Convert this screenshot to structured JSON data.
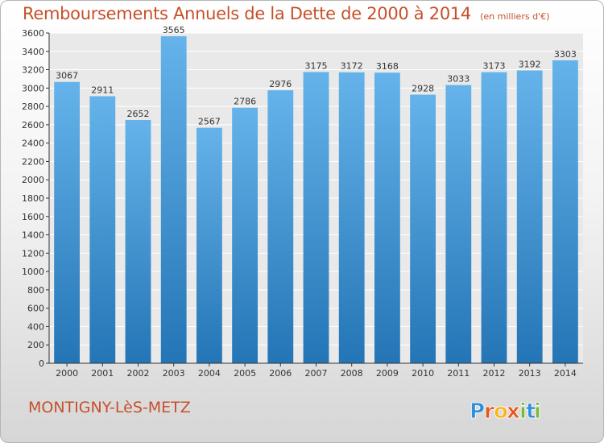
{
  "title": "Remboursements Annuels de la Dette de 2000 à 2014",
  "unit": "(en milliers d'€)",
  "city": "MONTIGNY-LèS-METZ",
  "brand": {
    "name": "Proxiti",
    "letters": [
      "P",
      "r",
      "o",
      "x",
      "i",
      "t",
      "i"
    ],
    "letter_colors": [
      "#2f8fd8",
      "#e8541c",
      "#f7b51c",
      "#e8541c",
      "#79b83a",
      "#2f8fd8",
      "#79b83a"
    ]
  },
  "colors": {
    "title": "#c6502a",
    "bar_top": "#65b3ea",
    "bar_bottom": "#2475b6",
    "plot_bg": "#e9e9e9",
    "grid": "#ffffff",
    "axis": "#333333"
  },
  "chart_data": {
    "type": "bar",
    "title": "Remboursements Annuels de la Dette de 2000 à 2014",
    "subtitle": "(en milliers d'€)",
    "xlabel": "",
    "ylabel": "",
    "categories": [
      "2000",
      "2001",
      "2002",
      "2003",
      "2004",
      "2005",
      "2006",
      "2007",
      "2008",
      "2009",
      "2010",
      "2011",
      "2012",
      "2013",
      "2014"
    ],
    "values": [
      3067,
      2911,
      2652,
      3565,
      2567,
      2786,
      2976,
      3175,
      3172,
      3168,
      2928,
      3033,
      3173,
      3192,
      3303
    ],
    "ylim": [
      0,
      3600
    ],
    "yticks": [
      0,
      200,
      400,
      600,
      800,
      1000,
      1200,
      1400,
      1600,
      1800,
      2000,
      2200,
      2400,
      2600,
      2800,
      3000,
      3200,
      3400,
      3600
    ],
    "grid": true,
    "legend": "none"
  }
}
